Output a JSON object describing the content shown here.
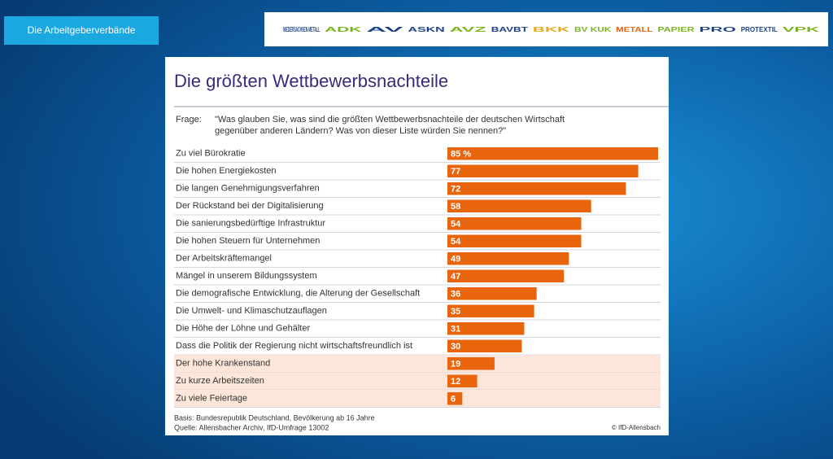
{
  "header": {
    "tab": "Die Arbeitgeberverbände",
    "logos": [
      "NIEDERSACHSEN METALL",
      "ADK",
      "AV",
      "ASKN",
      "AVZ",
      "BAVBT",
      "BKK",
      "BV KUK",
      "METALL",
      "PAPIER",
      "PRO",
      "PROTEXTIL",
      "VPK"
    ]
  },
  "chart_data": {
    "type": "bar",
    "orientation": "horizontal",
    "title": "Die größten Wettbewerbsnachteile",
    "question_label": "Frage:",
    "question": [
      "\"Was glauben Sie, was sind die größten Wettbewerbsnachteile der deutschen Wirtschaft",
      "gegenüber anderen Ländern? Was von dieser Liste würden Sie nennen?\""
    ],
    "categories": [
      "Zu viel Bürokratie",
      "Die hohen Energiekosten",
      "Die langen Genehmigungsverfahren",
      "Der Rückstand bei der Digitalisierung",
      "Die sanierungsbedürftige Infrastruktur",
      "Die hohen Steuern für Unternehmen",
      "Der Arbeitskräftemangel",
      "Mängel in unserem Bildungssystem",
      "Die demografische Entwicklung, die Alterung der Gesellschaft",
      "Die Umwelt- und Klimaschutzauflagen",
      "Die Höhe der Löhne und Gehälter",
      "Dass die Politik der Regierung nicht wirtschaftsfreundlich ist",
      "Der hohe Krankenstand",
      "Zu kurze Arbeitszeiten",
      "Zu viele Feiertage"
    ],
    "values": [
      85,
      77,
      72,
      58,
      54,
      54,
      49,
      47,
      36,
      35,
      31,
      30,
      19,
      12,
      6
    ],
    "value_labels": [
      "85 %",
      "77",
      "72",
      "58",
      "54",
      "54",
      "49",
      "47",
      "36",
      "35",
      "31",
      "30",
      "19",
      "12",
      "6"
    ],
    "color": "#e8650e",
    "highlight_rows": [
      12,
      13,
      14
    ],
    "highlight_color": "#fbe6d9",
    "footnotes": [
      "Basis: Bundesrepublik Deutschland, Bevölkerung ab 16 Jahre",
      "Quelle: Allensbacher Archiv, IfD-Umfrage 13002"
    ],
    "copyright": "© IfD-Allensbach"
  }
}
